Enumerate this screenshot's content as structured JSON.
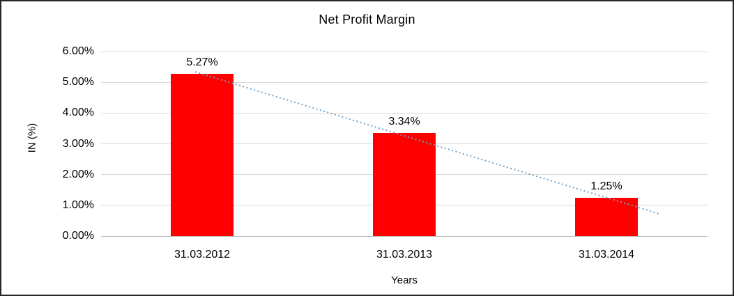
{
  "chart_data": {
    "type": "bar",
    "title": "Net Profit Margin",
    "xlabel": "Years",
    "ylabel": "IN (%)",
    "categories": [
      "31.03.2012",
      "31.03.2013",
      "31.03.2014"
    ],
    "values": [
      5.27,
      3.34,
      1.25
    ],
    "data_labels": [
      "5.27%",
      "3.34%",
      "1.25%"
    ],
    "ylim": [
      0,
      6
    ],
    "ytick_step": 1,
    "ytick_labels": [
      "0.00%",
      "1.00%",
      "2.00%",
      "3.00%",
      "4.00%",
      "5.00%",
      "6.00%"
    ],
    "grid": true,
    "legend": "none",
    "bar_color": "#fe0000",
    "gridline_color": "#d9d9d9",
    "axis_line_color": "#bfbfbf",
    "trendline_color": "#6fa3c8",
    "trendline_style": "dotted",
    "frame_border_color": "#262626"
  }
}
